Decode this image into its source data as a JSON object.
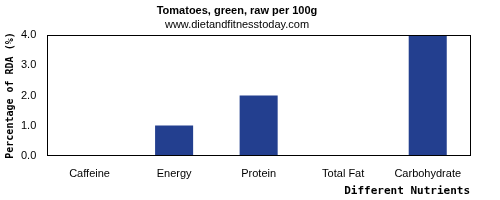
{
  "chart_data": {
    "type": "bar",
    "title": "Tomatoes, green, raw per 100g",
    "subtitle": "www.dietandfitnesstoday.com",
    "x_label": "Different Nutrients",
    "y_label": "Percentage of RDA (%)",
    "categories": [
      "Caffeine",
      "Energy",
      "Protein",
      "Total Fat",
      "Carbohydrate"
    ],
    "values": [
      0,
      1,
      2,
      0,
      4
    ],
    "color": "#233f8f",
    "ylim": [
      0,
      4
    ],
    "yticks": [
      {
        "value": 0,
        "label": "0.0"
      },
      {
        "value": 1,
        "label": "1.0"
      },
      {
        "value": 2,
        "label": "2.0"
      },
      {
        "value": 3,
        "label": "3.0"
      },
      {
        "value": 4,
        "label": "4.0"
      }
    ],
    "grid": false
  }
}
